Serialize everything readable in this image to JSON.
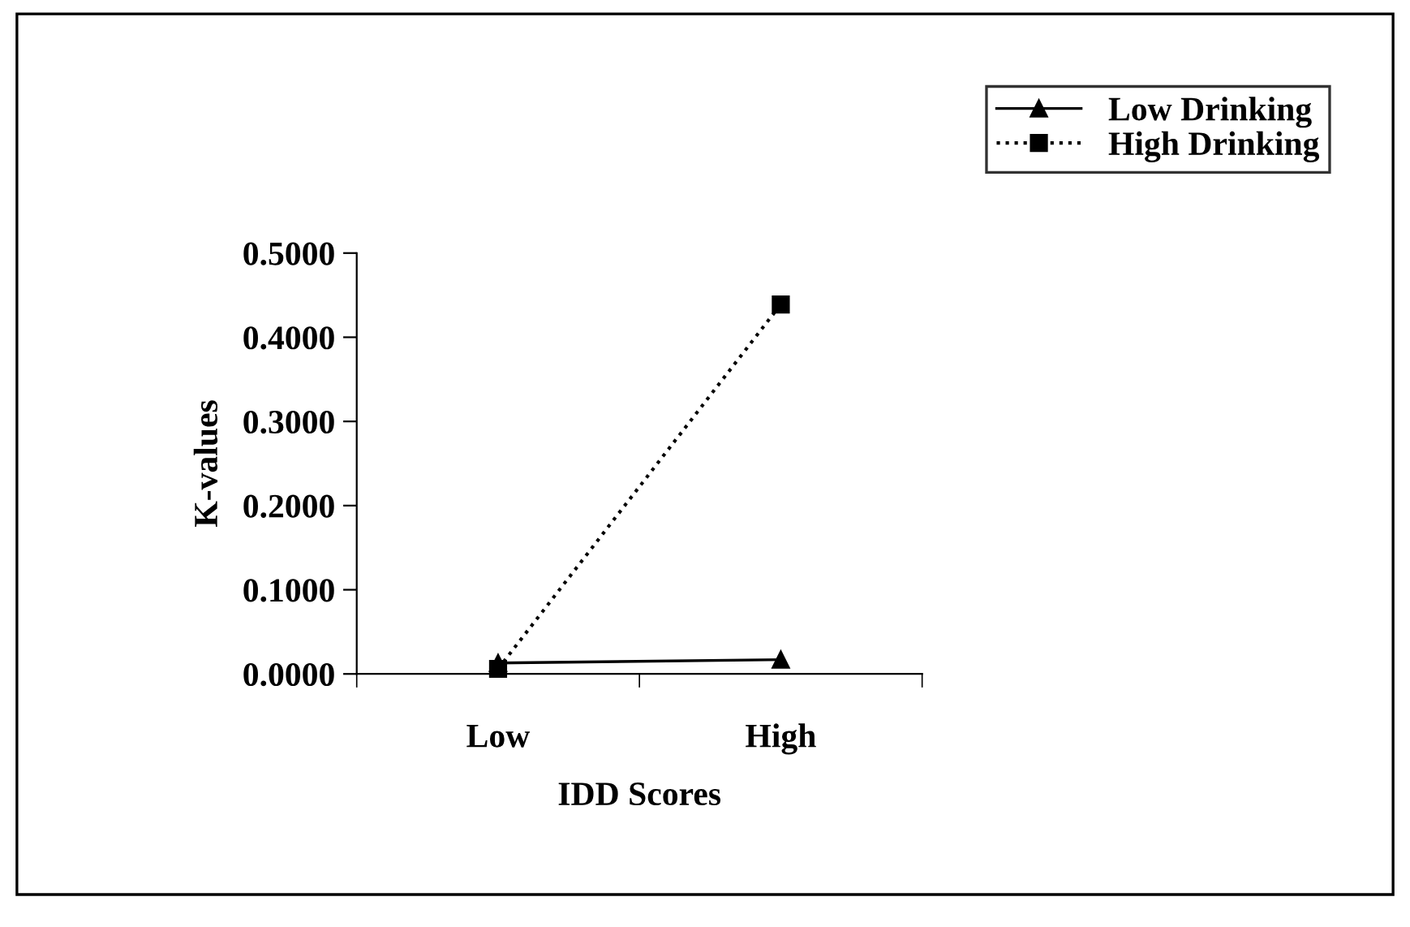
{
  "chart_data": {
    "type": "line",
    "xlabel": "IDD Scores",
    "ylabel": "K-values",
    "categories": [
      "Low",
      "High"
    ],
    "series": [
      {
        "name": "Low Drinking",
        "color": "#000000",
        "values": [
          0.013,
          0.017
        ],
        "marker": "triangle",
        "line_style": "solid"
      },
      {
        "name": "High Drinking",
        "color": "#000000",
        "values": [
          0.006,
          0.439
        ],
        "marker": "square",
        "line_style": "dotted"
      }
    ],
    "ylim": [
      0,
      0.5
    ],
    "yticks": [
      {
        "value": 0,
        "label": "0.0000"
      },
      {
        "value": 0.1,
        "label": "0.1000"
      },
      {
        "value": 0.2,
        "label": "0.2000"
      },
      {
        "value": 0.3,
        "label": "0.3000"
      },
      {
        "value": 0.4,
        "label": "0.4000"
      },
      {
        "value": 0.5,
        "label": "0.5000"
      }
    ],
    "grid": false,
    "legend": "top right"
  }
}
